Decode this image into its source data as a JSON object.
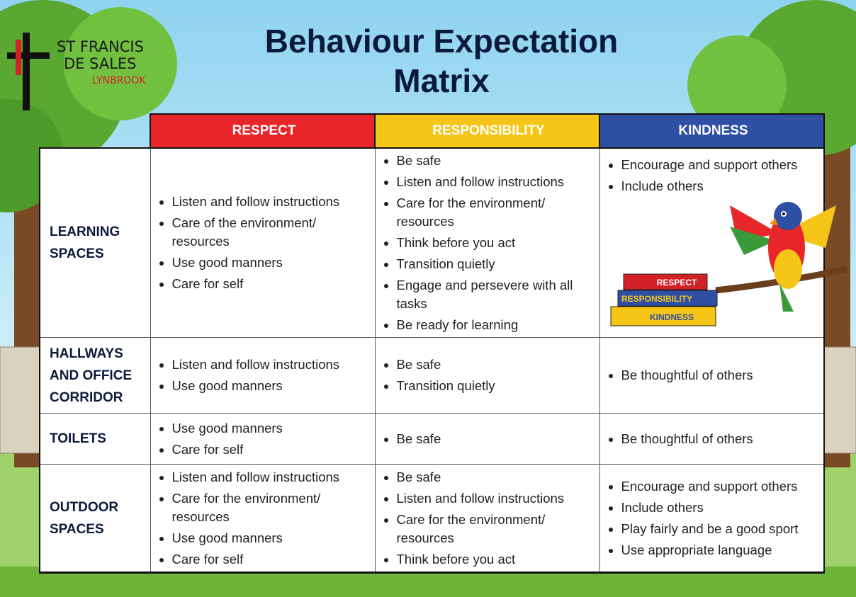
{
  "logo": {
    "line1": "ST FRANCIS",
    "line2": "DE SALES",
    "line3": "LYNBROOK"
  },
  "title": {
    "line1": "Behaviour Expectation",
    "line2": "Matrix"
  },
  "columns": [
    "RESPECT",
    "RESPONSIBILITY",
    "KINDNESS"
  ],
  "rows": [
    {
      "label": "LEARNING SPACES",
      "cells": [
        [
          "Listen and follow instructions",
          "Care of the environment/ resources",
          "Use good manners",
          "Care for self"
        ],
        [
          "Be safe",
          "Listen and follow instructions",
          "Care for the environment/ resources",
          "Think before you act",
          "Transition quietly",
          "Engage and persevere with all tasks",
          "Be ready for learning"
        ],
        [
          "Encourage and support others",
          "Include others"
        ]
      ]
    },
    {
      "label": "HALLWAYS AND OFFICE CORRIDOR",
      "cells": [
        [
          "Listen and follow instructions",
          "Use good manners"
        ],
        [
          "Be safe",
          "Transition quietly"
        ],
        [
          "Be thoughtful of others"
        ]
      ]
    },
    {
      "label": "TOILETS",
      "cells": [
        [
          "Use good manners",
          "Care for self"
        ],
        [
          "Be safe"
        ],
        [
          "Be thoughtful of others"
        ]
      ]
    },
    {
      "label": "OUTDOOR SPACES",
      "cells": [
        [
          "Listen and follow instructions",
          "Care for the environment/ resources",
          "Use good manners",
          "Care for self"
        ],
        [
          "Be safe",
          "Listen and follow instructions",
          "Care for the environment/ resources",
          "Think before you act"
        ],
        [
          "Encourage and support others",
          "Include others",
          "Play fairly and be a good sport",
          "Use appropriate language"
        ]
      ]
    }
  ],
  "books": [
    "RESPECT",
    "RESPONSIBILITY",
    "KINDNESS"
  ]
}
